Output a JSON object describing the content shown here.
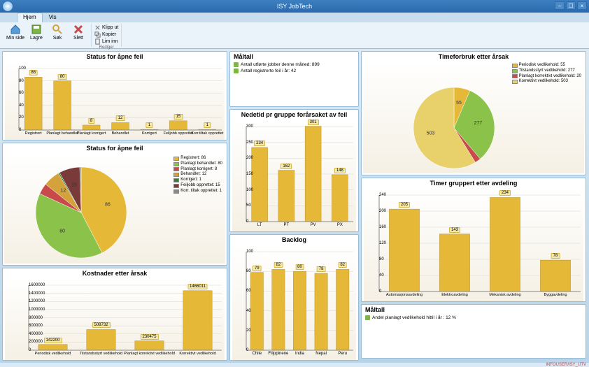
{
  "app": {
    "title": "ISY JobTech"
  },
  "ribbon": {
    "tabs": [
      "Hjem",
      "Vis"
    ],
    "buttons": {
      "minSide": "Min side",
      "lagre": "Lagre",
      "sok": "Søk",
      "slett": "Slett"
    },
    "small": {
      "klipput": "Klipp ut",
      "kopier": "Kopier",
      "liminn": "Lim inn"
    },
    "group": "Rediger"
  },
  "c1": {
    "title": "Status for åpne feil",
    "cats": [
      "Registrert",
      "Planlagt behandlet",
      "Planlagt korrigert",
      "Behandlet",
      "Korrigert",
      "Feiljobb opprettet",
      "Korr.tiltak opprettet"
    ],
    "vals": [
      86,
      80,
      8,
      12,
      1,
      15,
      1
    ],
    "ymax": 100,
    "ystep": 20,
    "bar_color": "#e6b838",
    "grid": "#d6d6d6"
  },
  "c2": {
    "title": "Status for åpne feil",
    "slices": [
      {
        "label": "Registrert: 86",
        "v": 86,
        "c": "#e6b838"
      },
      {
        "label": "Planlagt behandlet: 80",
        "v": 80,
        "c": "#8bc34a"
      },
      {
        "label": "Planlagt korrigert: 8",
        "v": 8,
        "c": "#c94a4a"
      },
      {
        "label": "Behandlet: 12",
        "v": 12,
        "c": "#d4a23a"
      },
      {
        "label": "Korrigert: 1",
        "v": 1,
        "c": "#3a7a3a"
      },
      {
        "label": "Feiljobb opprettet: 15",
        "v": 15,
        "c": "#7a3a3a"
      },
      {
        "label": "Korr. tiltak opprettet: 1",
        "v": 1,
        "c": "#888888"
      }
    ]
  },
  "c3": {
    "title": "Kostnader etter årsak",
    "cats": [
      "Periodisk vedlikehold",
      "Tilstandsstyrt vedlikehold",
      "Planlagt korrektivt vedlikehold",
      "Korrektivt vedlikehold"
    ],
    "vals": [
      142200,
      508732,
      230475,
      1466011
    ],
    "ymax": 1600000,
    "ystep": 200000,
    "bar_color": "#e6b838"
  },
  "m1": {
    "title": "Måltall",
    "rows": [
      "Antall utførte jobber denne måned: 899",
      "Antall registrerte feil i år: 42"
    ]
  },
  "c4": {
    "title": "Nedetid pr gruppe forårsaket av feil",
    "cats": [
      "LT",
      "PT",
      "PV",
      "PX"
    ],
    "vals": [
      234,
      162,
      301,
      148
    ],
    "ymax": 300,
    "ystep": 50,
    "bar_color": "#e6b838"
  },
  "c5": {
    "title": "Backlog",
    "cats": [
      "Chile",
      "Filippinene",
      "India",
      "Nepal",
      "Peru"
    ],
    "vals": [
      79,
      82,
      80,
      78,
      82
    ],
    "ymax": 100,
    "ystep": 20,
    "bar_color": "#e6b838"
  },
  "c6": {
    "title": "Timeforbruk etter årsak",
    "slices": [
      {
        "label": "Periodisk vedlikehold: 55",
        "v": 55,
        "c": "#e6b838"
      },
      {
        "label": "Tilstandsstyrt vedlikehold: 277",
        "v": 277,
        "c": "#8bc34a"
      },
      {
        "label": "Planlagt korrektivt vedlikehold: 20",
        "v": 20,
        "c": "#c94a4a"
      },
      {
        "label": "Korrektivt vedlikehold: 503",
        "v": 503,
        "c": "#e8d06a"
      }
    ]
  },
  "c7": {
    "title": "Timer gruppert etter avdeling",
    "cats": [
      "Automasjonsavdeling",
      "Elektroavdeling",
      "Mekanisk avdeling",
      "Byggavdeling"
    ],
    "vals": [
      205,
      143,
      234,
      78
    ],
    "ymax": 240,
    "ystep": 40,
    "bar_color": "#e6b838"
  },
  "m2": {
    "title": "Måltall",
    "rows": [
      "Andel planlagt vedlikehold hittil i år : 12 %"
    ]
  },
  "status": "INFOUSER/ISY_UTV"
}
